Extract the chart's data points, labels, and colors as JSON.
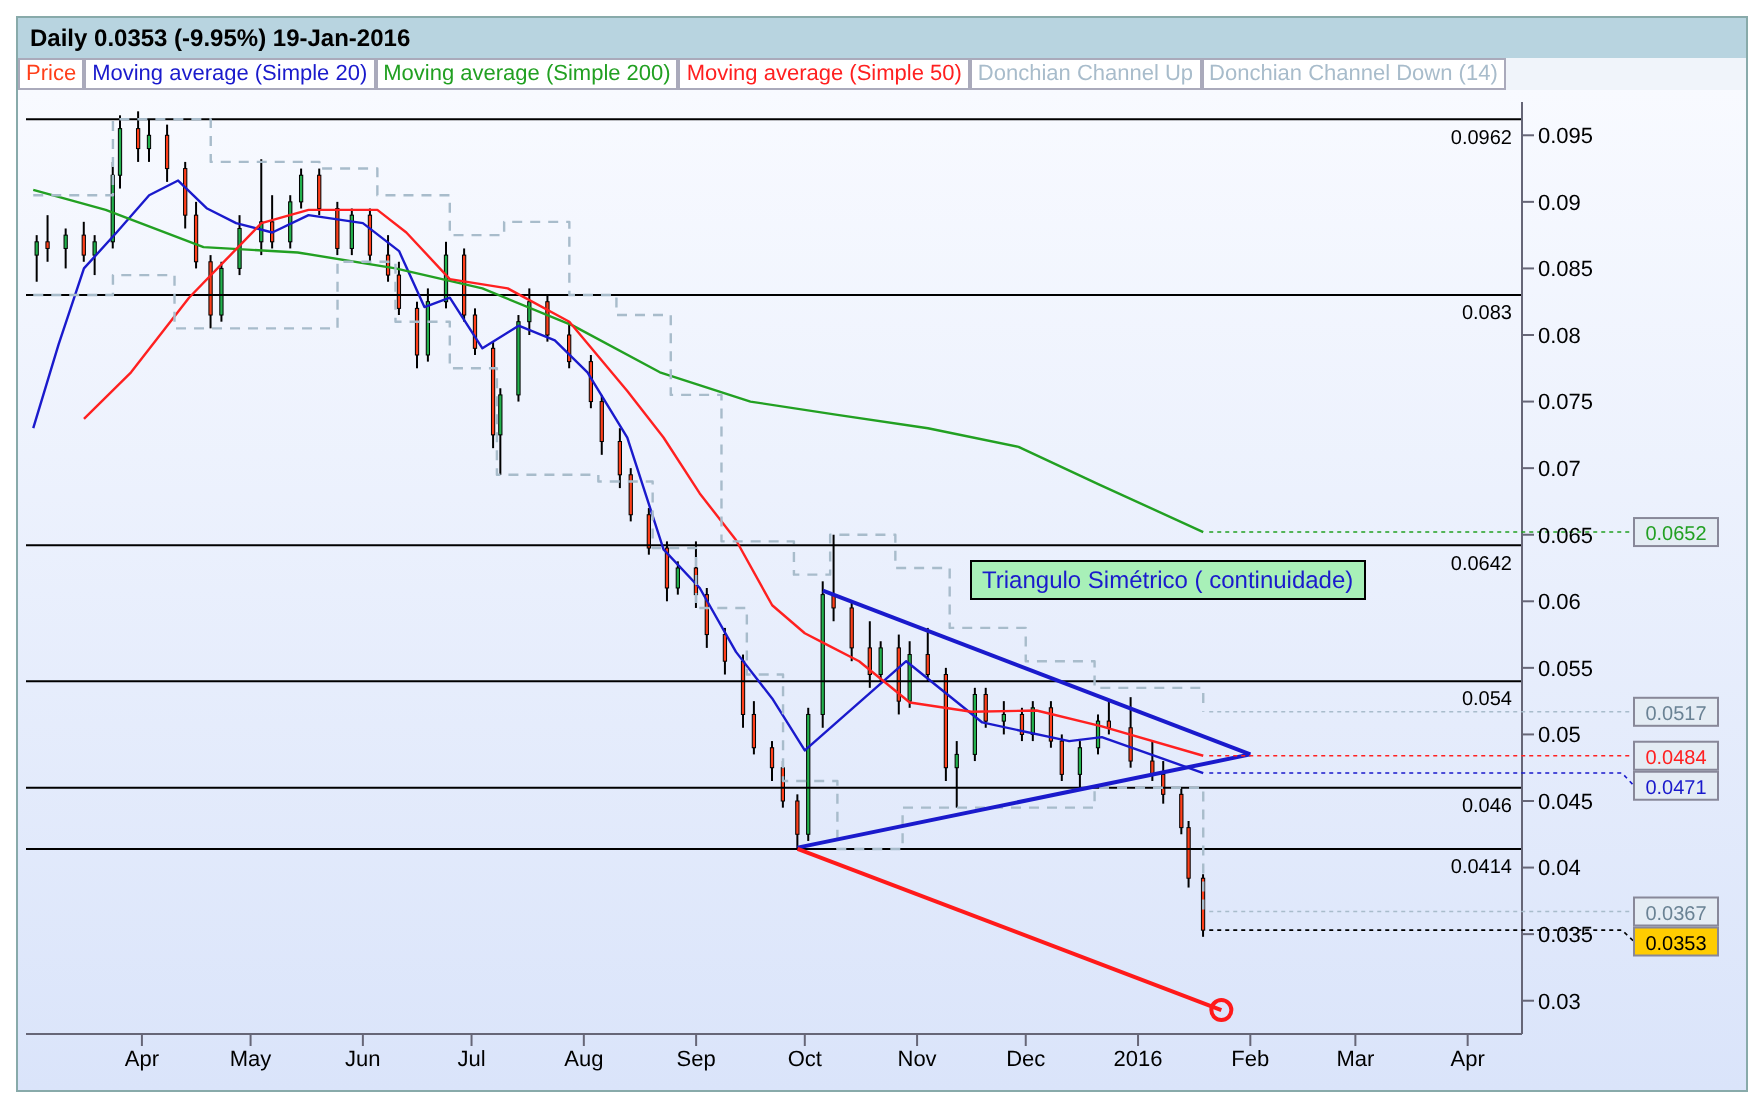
{
  "chart_data": {
    "type": "candlestick",
    "title": "Daily   0.0353 (-9.95%)   19-Jan-2016",
    "legend": "top left",
    "xlim": [
      "2015-02-28",
      "2016-04-16"
    ],
    "xticks": [
      {
        "value": "2015-04-01",
        "label": "Apr"
      },
      {
        "value": "2015-05-01",
        "label": "May"
      },
      {
        "value": "2015-06-01",
        "label": "Jun"
      },
      {
        "value": "2015-07-01",
        "label": "Jul"
      },
      {
        "value": "2015-08-01",
        "label": "Aug"
      },
      {
        "value": "2015-09-01",
        "label": "Sep"
      },
      {
        "value": "2015-10-01",
        "label": "Oct"
      },
      {
        "value": "2015-11-01",
        "label": "Nov"
      },
      {
        "value": "2015-12-01",
        "label": "Dec"
      },
      {
        "value": "2016-01-01",
        "label": "2016"
      },
      {
        "value": "2016-02-01",
        "label": "Feb"
      },
      {
        "value": "2016-03-01",
        "label": "Mar"
      },
      {
        "value": "2016-04-01",
        "label": "Apr"
      }
    ],
    "ylim": [
      0.0275,
      0.0975
    ],
    "yticks": [
      0.03,
      0.035,
      0.04,
      0.045,
      0.05,
      0.055,
      0.06,
      0.065,
      0.07,
      0.075,
      0.08,
      0.085,
      0.09,
      0.095
    ],
    "series": [
      {
        "name": "Price",
        "color": "#ff3f1a",
        "x": [
          "2015-03-03",
          "2015-03-06",
          "2015-03-11",
          "2015-03-16",
          "2015-03-19",
          "2015-03-24",
          "2015-03-26",
          "2015-03-31",
          "2015-04-03",
          "2015-04-08",
          "2015-04-13",
          "2015-04-16",
          "2015-04-20",
          "2015-04-23",
          "2015-04-28",
          "2015-05-04",
          "2015-05-07",
          "2015-05-12",
          "2015-05-15",
          "2015-05-20",
          "2015-05-25",
          "2015-05-29",
          "2015-06-03",
          "2015-06-08",
          "2015-06-11",
          "2015-06-16",
          "2015-06-19",
          "2015-06-24",
          "2015-06-29",
          "2015-07-02",
          "2015-07-07",
          "2015-07-09",
          "2015-07-14",
          "2015-07-17",
          "2015-07-22",
          "2015-07-28",
          "2015-08-03",
          "2015-08-06",
          "2015-08-11",
          "2015-08-14",
          "2015-08-19",
          "2015-08-24",
          "2015-08-27",
          "2015-09-01",
          "2015-09-04",
          "2015-09-09",
          "2015-09-14",
          "2015-09-17",
          "2015-09-22",
          "2015-09-25",
          "2015-09-29",
          "2015-10-02",
          "2015-10-06",
          "2015-10-09",
          "2015-10-14",
          "2015-10-19",
          "2015-10-22",
          "2015-10-27",
          "2015-10-30",
          "2015-11-04",
          "2015-11-09",
          "2015-11-12",
          "2015-11-17",
          "2015-11-20",
          "2015-11-25",
          "2015-11-30",
          "2015-12-03",
          "2015-12-08",
          "2015-12-11",
          "2015-12-16",
          "2015-12-21",
          "2015-12-24",
          "2015-12-30",
          "2016-01-05",
          "2016-01-08",
          "2016-01-13",
          "2016-01-15",
          "2016-01-19"
        ],
        "ohlc": [
          [
            0.086,
            0.0875,
            0.084,
            0.087
          ],
          [
            0.087,
            0.089,
            0.0855,
            0.0865
          ],
          [
            0.0865,
            0.088,
            0.085,
            0.0875
          ],
          [
            0.0875,
            0.0885,
            0.0855,
            0.086
          ],
          [
            0.086,
            0.0875,
            0.0845,
            0.087
          ],
          [
            0.087,
            0.093,
            0.0865,
            0.092
          ],
          [
            0.092,
            0.0965,
            0.091,
            0.0955
          ],
          [
            0.0955,
            0.0968,
            0.093,
            0.094
          ],
          [
            0.094,
            0.0962,
            0.093,
            0.095
          ],
          [
            0.095,
            0.0958,
            0.0915,
            0.0925
          ],
          [
            0.0925,
            0.093,
            0.088,
            0.089
          ],
          [
            0.089,
            0.09,
            0.085,
            0.0855
          ],
          [
            0.0855,
            0.086,
            0.0805,
            0.0815
          ],
          [
            0.0815,
            0.0855,
            0.081,
            0.085
          ],
          [
            0.085,
            0.089,
            0.0845,
            0.088
          ],
          [
            0.087,
            0.0932,
            0.086,
            0.0885
          ],
          [
            0.0885,
            0.0905,
            0.0865,
            0.087
          ],
          [
            0.087,
            0.0905,
            0.0865,
            0.09
          ],
          [
            0.09,
            0.0925,
            0.0895,
            0.092
          ],
          [
            0.092,
            0.0925,
            0.089,
            0.0895
          ],
          [
            0.0895,
            0.09,
            0.086,
            0.0865
          ],
          [
            0.0865,
            0.0895,
            0.086,
            0.089
          ],
          [
            0.089,
            0.0895,
            0.0855,
            0.086
          ],
          [
            0.086,
            0.0875,
            0.084,
            0.0845
          ],
          [
            0.0845,
            0.0855,
            0.0815,
            0.082
          ],
          [
            0.082,
            0.0825,
            0.0775,
            0.0785
          ],
          [
            0.0785,
            0.0835,
            0.078,
            0.0825
          ],
          [
            0.0825,
            0.087,
            0.082,
            0.086
          ],
          [
            0.086,
            0.0865,
            0.081,
            0.0815
          ],
          [
            0.0815,
            0.082,
            0.0785,
            0.079
          ],
          [
            0.079,
            0.0795,
            0.0715,
            0.0725
          ],
          [
            0.0725,
            0.076,
            0.0695,
            0.0755
          ],
          [
            0.0755,
            0.0815,
            0.075,
            0.081
          ],
          [
            0.081,
            0.0835,
            0.08,
            0.0825
          ],
          [
            0.0825,
            0.083,
            0.0795,
            0.08
          ],
          [
            0.08,
            0.081,
            0.0775,
            0.078
          ],
          [
            0.078,
            0.0785,
            0.0745,
            0.075
          ],
          [
            0.075,
            0.0755,
            0.071,
            0.072
          ],
          [
            0.072,
            0.073,
            0.0685,
            0.0695
          ],
          [
            0.0695,
            0.07,
            0.066,
            0.0665
          ],
          [
            0.0665,
            0.067,
            0.0635,
            0.064
          ],
          [
            0.064,
            0.0645,
            0.06,
            0.061
          ],
          [
            0.061,
            0.063,
            0.0605,
            0.0625
          ],
          [
            0.0625,
            0.0645,
            0.0595,
            0.0605
          ],
          [
            0.0605,
            0.061,
            0.0565,
            0.0575
          ],
          [
            0.0575,
            0.058,
            0.0545,
            0.0555
          ],
          [
            0.0555,
            0.056,
            0.0505,
            0.0515
          ],
          [
            0.0515,
            0.0525,
            0.0485,
            0.049
          ],
          [
            0.049,
            0.0495,
            0.0465,
            0.0475
          ],
          [
            0.0475,
            0.048,
            0.0445,
            0.045
          ],
          [
            0.045,
            0.0455,
            0.0414,
            0.0425
          ],
          [
            0.0425,
            0.052,
            0.042,
            0.0515
          ],
          [
            0.0515,
            0.0615,
            0.0505,
            0.0605
          ],
          [
            0.0605,
            0.065,
            0.0585,
            0.0595
          ],
          [
            0.0595,
            0.06,
            0.0555,
            0.0565
          ],
          [
            0.0565,
            0.0585,
            0.0535,
            0.0545
          ],
          [
            0.0545,
            0.057,
            0.054,
            0.0565
          ],
          [
            0.0565,
            0.0575,
            0.0515,
            0.0525
          ],
          [
            0.0525,
            0.057,
            0.052,
            0.056
          ],
          [
            0.056,
            0.058,
            0.054,
            0.0545
          ],
          [
            0.0545,
            0.055,
            0.0465,
            0.0475
          ],
          [
            0.0475,
            0.0495,
            0.0445,
            0.0485
          ],
          [
            0.0485,
            0.0535,
            0.048,
            0.053
          ],
          [
            0.053,
            0.0535,
            0.0505,
            0.051
          ],
          [
            0.051,
            0.0525,
            0.05,
            0.0515
          ],
          [
            0.0515,
            0.052,
            0.0495,
            0.05
          ],
          [
            0.05,
            0.0525,
            0.0495,
            0.052
          ],
          [
            0.052,
            0.0525,
            0.049,
            0.0495
          ],
          [
            0.0495,
            0.05,
            0.0465,
            0.047
          ],
          [
            0.047,
            0.0495,
            0.046,
            0.049
          ],
          [
            0.049,
            0.0515,
            0.0485,
            0.051
          ],
          [
            0.051,
            0.0525,
            0.05,
            0.0505
          ],
          [
            0.0505,
            0.0528,
            0.0475,
            0.048
          ],
          [
            0.048,
            0.0495,
            0.0465,
            0.047
          ],
          [
            0.047,
            0.048,
            0.0448,
            0.0455
          ],
          [
            0.0455,
            0.046,
            0.0425,
            0.043
          ],
          [
            0.043,
            0.0435,
            0.0385,
            0.0392
          ],
          [
            0.0392,
            0.0395,
            0.0348,
            0.0353
          ]
        ],
        "colors": [
          "#22b14c",
          "#ff3f1a",
          "#22b14c",
          "#ff3f1a",
          "#22b14c",
          "#22b14c",
          "#22b14c",
          "#ff3f1a",
          "#22b14c",
          "#ff3f1a",
          "#ff3f1a",
          "#ff3f1a",
          "#ff3f1a",
          "#22b14c",
          "#22b14c",
          "#22b14c",
          "#ff3f1a",
          "#22b14c",
          "#22b14c",
          "#ff3f1a",
          "#ff3f1a",
          "#22b14c",
          "#ff3f1a",
          "#ff3f1a",
          "#ff3f1a",
          "#ff3f1a",
          "#22b14c",
          "#22b14c",
          "#ff3f1a",
          "#ff3f1a",
          "#ff3f1a",
          "#22b14c",
          "#22b14c",
          "#22b14c",
          "#ff3f1a",
          "#ff3f1a",
          "#ff3f1a",
          "#ff3f1a",
          "#ff3f1a",
          "#ff3f1a",
          "#ff3f1a",
          "#ff3f1a",
          "#22b14c",
          "#ff3f1a",
          "#ff3f1a",
          "#ff3f1a",
          "#ff3f1a",
          "#ff3f1a",
          "#ff3f1a",
          "#ff3f1a",
          "#ff3f1a",
          "#22b14c",
          "#22b14c",
          "#ff3f1a",
          "#ff3f1a",
          "#ff3f1a",
          "#22b14c",
          "#ff3f1a",
          "#22b14c",
          "#ff3f1a",
          "#ff3f1a",
          "#22b14c",
          "#22b14c",
          "#ff3f1a",
          "#22b14c",
          "#ff3f1a",
          "#22b14c",
          "#ff3f1a",
          "#ff3f1a",
          "#22b14c",
          "#22b14c",
          "#ff3f1a",
          "#ff3f1a",
          "#ff3f1a",
          "#ff3f1a",
          "#ff3f1a",
          "#ff3f1a",
          "#ff3f1a"
        ]
      },
      {
        "name": "Moving average (Simple 20)",
        "type": "line",
        "color": "#1a1acc",
        "x": [
          "2015-03-02",
          "2015-03-09",
          "2015-03-16",
          "2015-03-25",
          "2015-04-03",
          "2015-04-11",
          "2015-04-19",
          "2015-04-27",
          "2015-05-07",
          "2015-05-17",
          "2015-06-01",
          "2015-06-11",
          "2015-06-18",
          "2015-06-25",
          "2015-07-04",
          "2015-07-14",
          "2015-07-24",
          "2015-08-02",
          "2015-08-13",
          "2015-08-23",
          "2015-09-02",
          "2015-09-12",
          "2015-09-22",
          "2015-10-01",
          "2015-10-29",
          "2015-11-19",
          "2015-12-13",
          "2015-12-22",
          "2016-01-19"
        ],
        "values": [
          0.073,
          0.0793,
          0.085,
          0.0877,
          0.0905,
          0.0916,
          0.0895,
          0.0884,
          0.0877,
          0.089,
          0.0884,
          0.0863,
          0.0821,
          0.0828,
          0.079,
          0.0807,
          0.0796,
          0.0772,
          0.0723,
          0.0639,
          0.061,
          0.0562,
          0.0527,
          0.0488,
          0.0555,
          0.0509,
          0.0495,
          0.0498,
          0.0471
        ]
      },
      {
        "name": "Moving average (Simple 200)",
        "type": "line",
        "color": "#22a022",
        "x": [
          "2015-03-02",
          "2015-03-22",
          "2015-04-18",
          "2015-05-14",
          "2015-06-10",
          "2015-07-04",
          "2015-07-29",
          "2015-08-22",
          "2015-09-16",
          "2015-10-10",
          "2015-11-04",
          "2015-11-29",
          "2015-12-21",
          "2016-01-19"
        ],
        "values": [
          0.0909,
          0.0894,
          0.0866,
          0.0862,
          0.085,
          0.0835,
          0.0807,
          0.0772,
          0.075,
          0.074,
          0.073,
          0.0716,
          0.0688,
          0.0652
        ]
      },
      {
        "name": "Moving average (Simple 50)",
        "type": "line",
        "color": "#ff2020",
        "x": [
          "2015-03-16",
          "2015-03-29",
          "2015-04-14",
          "2015-04-24",
          "2015-05-04",
          "2015-05-17",
          "2015-05-28",
          "2015-06-05",
          "2015-06-13",
          "2015-06-25",
          "2015-07-11",
          "2015-07-28",
          "2015-08-13",
          "2015-08-23",
          "2015-09-02",
          "2015-09-12",
          "2015-09-22",
          "2015-10-01",
          "2015-10-06",
          "2015-10-16",
          "2015-10-30",
          "2015-11-16",
          "2015-12-04",
          "2015-12-22",
          "2016-01-19"
        ],
        "values": [
          0.0737,
          0.0772,
          0.0828,
          0.0856,
          0.0884,
          0.0894,
          0.0894,
          0.0894,
          0.0877,
          0.0842,
          0.0835,
          0.081,
          0.0758,
          0.0723,
          0.0681,
          0.0646,
          0.0597,
          0.0576,
          0.0569,
          0.0555,
          0.0524,
          0.0517,
          0.0518,
          0.0506,
          0.0484
        ]
      },
      {
        "name": "Donchian Channel Up",
        "type": "step",
        "line_style": "dashed",
        "color": "#a8bccb",
        "x": [
          "2015-03-02",
          "2015-03-24",
          "2015-04-20",
          "2015-05-20",
          "2015-06-05",
          "2015-06-25",
          "2015-07-10",
          "2015-07-28",
          "2015-08-10",
          "2015-08-25",
          "2015-09-08",
          "2015-09-28",
          "2015-10-08",
          "2015-10-26",
          "2015-11-10",
          "2015-12-01",
          "2015-12-20",
          "2016-01-19"
        ],
        "values": [
          0.0905,
          0.0962,
          0.093,
          0.0925,
          0.0905,
          0.0875,
          0.0885,
          0.083,
          0.0815,
          0.0755,
          0.0645,
          0.062,
          0.065,
          0.0625,
          0.058,
          0.0555,
          0.0535,
          0.0517
        ]
      },
      {
        "name": "Donchian Channel Down (14)",
        "type": "step",
        "line_style": "dashed",
        "color": "#a8bccb",
        "x": [
          "2015-03-02",
          "2015-03-24",
          "2015-04-10",
          "2015-05-06",
          "2015-05-25",
          "2015-06-10",
          "2015-06-25",
          "2015-07-08",
          "2015-07-27",
          "2015-08-05",
          "2015-08-20",
          "2015-09-01",
          "2015-09-15",
          "2015-09-25",
          "2015-10-10",
          "2015-10-28",
          "2015-11-12",
          "2015-12-05",
          "2015-12-20",
          "2016-01-19"
        ],
        "values": [
          0.083,
          0.0845,
          0.0805,
          0.0805,
          0.0855,
          0.081,
          0.0775,
          0.0695,
          0.0695,
          0.069,
          0.064,
          0.0595,
          0.0545,
          0.0465,
          0.0414,
          0.0445,
          0.0445,
          0.0445,
          0.046,
          0.0367
        ]
      },
      {
        "type": "line",
        "color": "#1a1acc",
        "x": [
          "2015-10-06",
          "2016-02-01"
        ],
        "values": [
          0.0608,
          0.0485
        ]
      },
      {
        "type": "line",
        "color": "#1a1acc",
        "x": [
          "2015-09-29",
          "2016-02-01"
        ],
        "values": [
          0.0415,
          0.0485
        ]
      },
      {
        "type": "line",
        "color": "#ff1a1a",
        "x": [
          "2015-09-29",
          "2016-01-24"
        ],
        "values": [
          0.0414,
          0.0293
        ]
      }
    ],
    "ref_lines": [
      {
        "axis": "y",
        "value": 0.0962,
        "label": "0.0962",
        "color": "#000000"
      },
      {
        "axis": "y",
        "value": 0.083,
        "label": "0.083",
        "color": "#000000"
      },
      {
        "axis": "y",
        "value": 0.0642,
        "label": "0.0642",
        "color": "#000000"
      },
      {
        "axis": "y",
        "value": 0.054,
        "label": "0.054",
        "color": "#000000"
      },
      {
        "axis": "y",
        "value": 0.046,
        "label": "0.046",
        "color": "#000000"
      },
      {
        "axis": "y",
        "value": 0.0414,
        "label": "0.0414",
        "color": "#000000"
      }
    ],
    "annotations": [
      "Triangulo Simétrico ( continuidade)",
      {
        "text": "0.0652",
        "x": "2016-01-19",
        "y": 0.0652
      },
      {
        "text": "0.0517",
        "x": "2016-01-19",
        "y": 0.0517
      },
      {
        "text": "0.0484",
        "x": "2016-01-19",
        "y": 0.0484
      },
      {
        "text": "0.0471",
        "x": "2016-01-19",
        "y": 0.0471
      },
      {
        "text": "0.0367",
        "x": "2016-01-19",
        "y": 0.0367
      },
      {
        "text": "0.0353",
        "x": "2016-01-19",
        "y": 0.0353
      }
    ]
  }
}
